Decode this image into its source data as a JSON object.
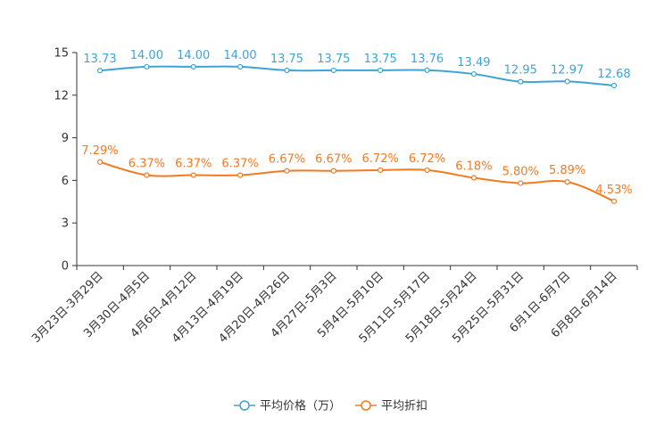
{
  "chart_data": {
    "type": "line",
    "categories": [
      "3月23日-3月29日",
      "3月30日-4月5日",
      "4月6日-4月12日",
      "4月13日-4月19日",
      "4月20日-4月26日",
      "4月27日-5月3日",
      "5月4日-5月10日",
      "5月11日-5月17日",
      "5月18日-5月24日",
      "5月25日-5月31日",
      "6月1日-6月7日",
      "6月8日-6月14日"
    ],
    "ylim": [
      0,
      15
    ],
    "yticks": [
      "0",
      "3",
      "6",
      "9",
      "12",
      "15"
    ],
    "series": [
      {
        "name": "平均价格（万）",
        "color": "#3fa4d4",
        "values": [
          13.73,
          14.0,
          14.0,
          14.0,
          13.75,
          13.75,
          13.75,
          13.76,
          13.49,
          12.95,
          12.97,
          12.68
        ],
        "labels": [
          "13.73",
          "14.00",
          "14.00",
          "14.00",
          "13.75",
          "13.75",
          "13.75",
          "13.76",
          "13.49",
          "12.95",
          "12.97",
          "12.68"
        ]
      },
      {
        "name": "平均折扣",
        "color": "#f47a20",
        "plot_values": [
          7.29,
          6.37,
          6.37,
          6.37,
          6.67,
          6.67,
          6.72,
          6.72,
          6.18,
          5.8,
          5.89,
          4.53
        ],
        "labels": [
          "7.29%",
          "6.37%",
          "6.37%",
          "6.37%",
          "6.67%",
          "6.67%",
          "6.72%",
          "6.72%",
          "6.18%",
          "5.80%",
          "5.89%",
          "4.53%"
        ]
      }
    ],
    "legend_position": "bottom-center"
  }
}
